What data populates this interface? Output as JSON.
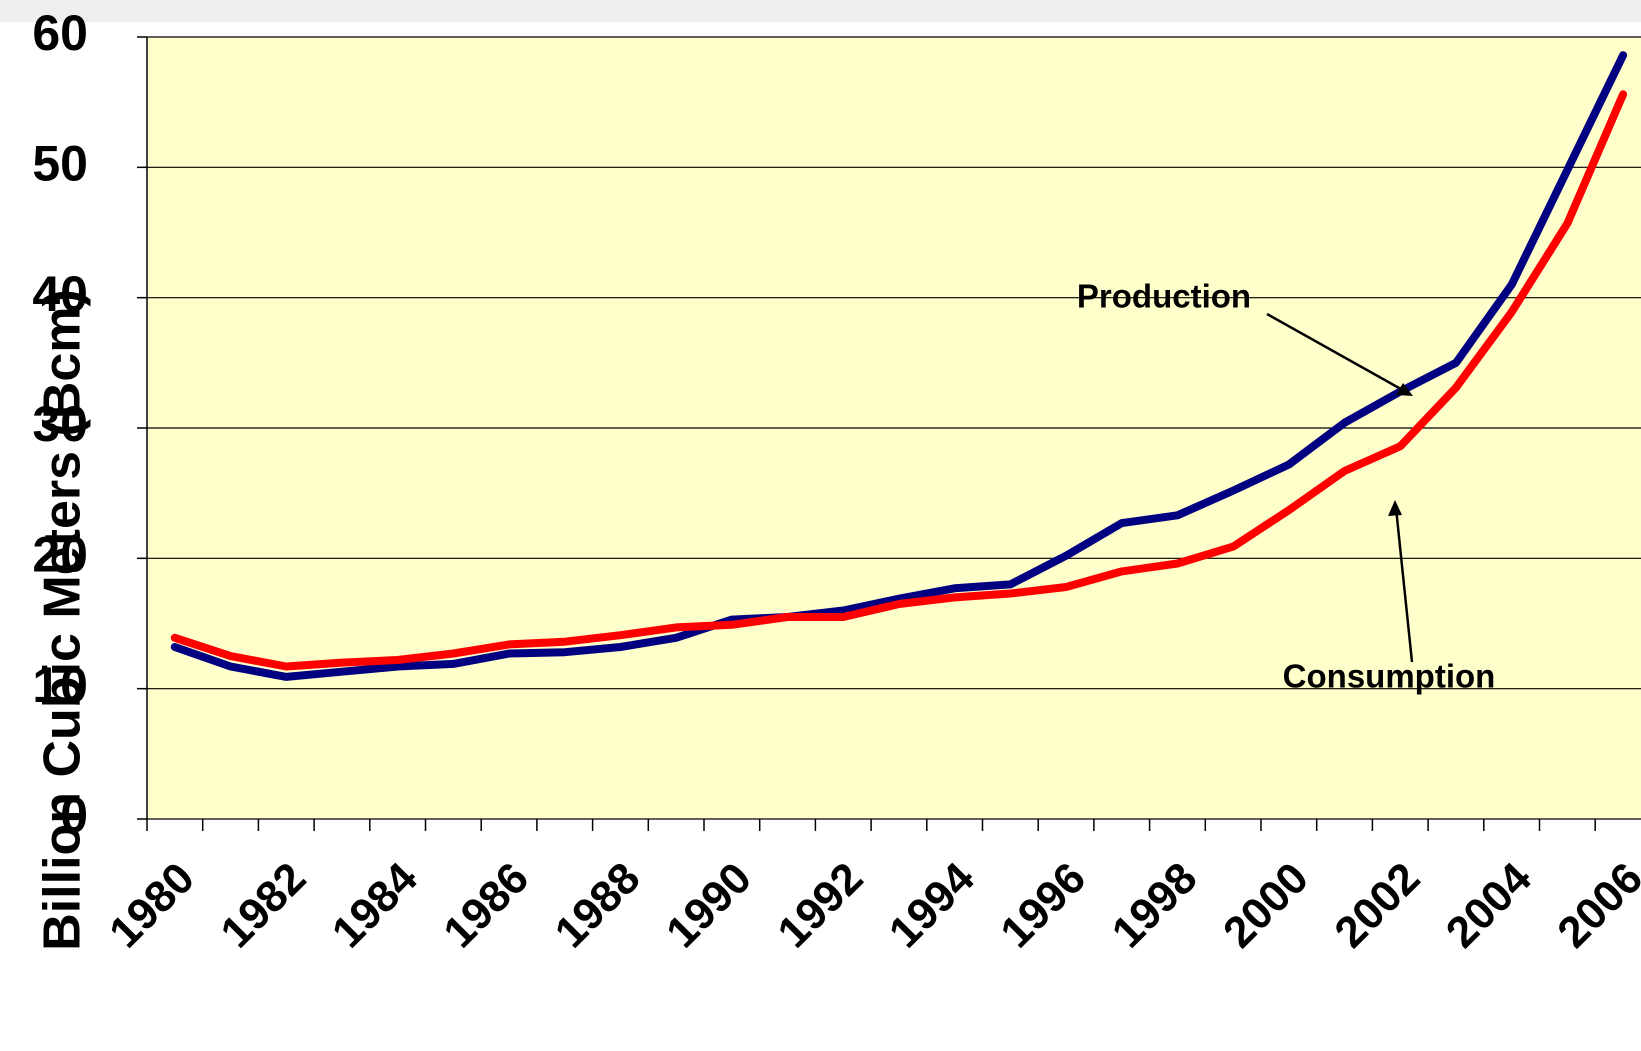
{
  "chart_data": {
    "type": "line",
    "y_label": "Billion Cubic Meters (Bcm)",
    "categories": [
      "1980",
      null,
      "1982",
      null,
      "1984",
      null,
      "1986",
      null,
      "1988",
      null,
      "1990",
      null,
      "1992",
      null,
      "1994",
      null,
      "1996",
      null,
      "1998",
      null,
      "2000",
      null,
      "2002",
      null,
      "2004",
      null,
      "2006"
    ],
    "series": [
      {
        "name": "Production",
        "color": "#000080",
        "values": [
          13.2,
          11.7,
          10.9,
          11.3,
          11.7,
          11.9,
          12.7,
          12.8,
          13.2,
          13.9,
          15.3,
          15.5,
          16.0,
          16.9,
          17.7,
          18.0,
          20.2,
          22.7,
          23.3,
          25.2,
          27.2,
          30.4,
          32.8,
          35.0,
          41.0,
          49.8,
          58.6
        ]
      },
      {
        "name": "Consumption",
        "color": "#ff0000",
        "values": [
          13.9,
          12.5,
          11.7,
          12.0,
          12.2,
          12.7,
          13.4,
          13.6,
          14.1,
          14.7,
          14.9,
          15.5,
          15.5,
          16.5,
          17.0,
          17.3,
          17.8,
          19.0,
          19.6,
          20.9,
          23.7,
          26.7,
          28.6,
          33.1,
          38.9,
          45.7,
          55.6
        ]
      }
    ],
    "ylim": [
      0,
      60
    ],
    "yticks": [
      0,
      10,
      20,
      30,
      40,
      50,
      60
    ],
    "grid": true
  }
}
